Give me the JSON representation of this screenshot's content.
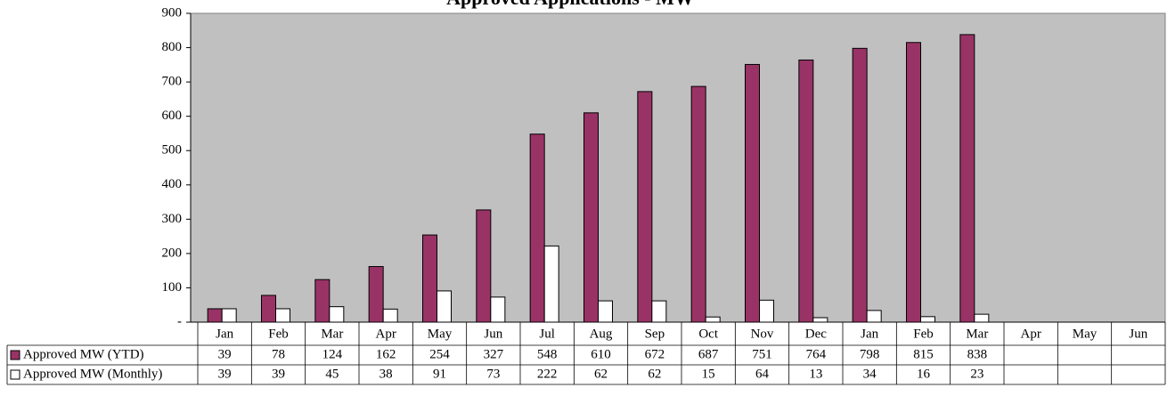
{
  "chart_data": {
    "type": "bar",
    "title": "Approved Applications - MW",
    "categories": [
      "Jan",
      "Feb",
      "Mar",
      "Apr",
      "May",
      "Jun",
      "Jul",
      "Aug",
      "Sep",
      "Oct",
      "Nov",
      "Dec",
      "Jan",
      "Feb",
      "Mar",
      "Apr",
      "May",
      "Jun"
    ],
    "series": [
      {
        "name": "Approved MW (YTD)",
        "color": "#993366",
        "values": [
          39,
          78,
          124,
          162,
          254,
          327,
          548,
          610,
          672,
          687,
          751,
          764,
          798,
          815,
          838,
          null,
          null,
          null
        ]
      },
      {
        "name": "Approved MW (Monthly)",
        "color": "#ffffff",
        "values": [
          39,
          39,
          45,
          38,
          91,
          73,
          222,
          62,
          62,
          15,
          64,
          13,
          34,
          16,
          23,
          null,
          null,
          null
        ]
      }
    ],
    "ylim": [
      0,
      900
    ],
    "yticks": [
      {
        "value": 0,
        "label": "-"
      },
      100,
      200,
      300,
      400,
      500,
      600,
      700,
      800,
      900
    ],
    "plot_background": "#c0c0c0"
  }
}
